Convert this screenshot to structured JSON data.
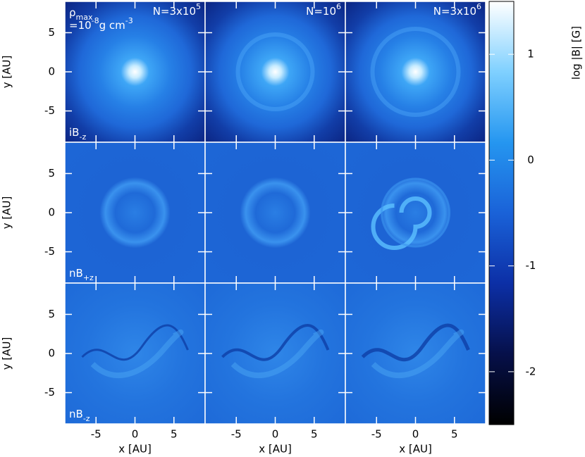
{
  "chart_data": {
    "type": "image-grid",
    "xlabel": "x [AU]",
    "ylabel": "y [AU]",
    "xlim": [
      -9,
      9
    ],
    "ylim": [
      -9,
      9
    ],
    "xticks": [
      -5,
      0,
      5
    ],
    "yticks": [
      -5,
      0,
      5
    ],
    "columns": [
      {
        "base": "N=3x10",
        "sup": "5"
      },
      {
        "base": "N=10",
        "sup": "6"
      },
      {
        "base": "N=3x10",
        "sup": "6"
      }
    ],
    "rows": [
      {
        "base": "iB",
        "sub": "-z"
      },
      {
        "base": "nB",
        "sub": "+z"
      },
      {
        "base": "nB",
        "sub": "-z"
      }
    ],
    "annotation": [
      [
        {
          "t": "ρ"
        },
        {
          "t": "max",
          "s": "sub"
        }
      ],
      [
        {
          "t": "=10"
        },
        {
          "t": "-8",
          "s": "sup"
        },
        {
          "t": "g cm"
        },
        {
          "t": "-3",
          "s": "sup"
        }
      ]
    ],
    "colorbar": {
      "label": "log |B| [G]",
      "lim": [
        -2.5,
        1.5
      ],
      "ticks": [
        -2,
        -1,
        0,
        1
      ],
      "colormap": [
        "#000000",
        "#06104a",
        "#0c2fa6",
        "#1a62d8",
        "#2596f0",
        "#7fd0ff",
        "#ffffff"
      ]
    }
  }
}
